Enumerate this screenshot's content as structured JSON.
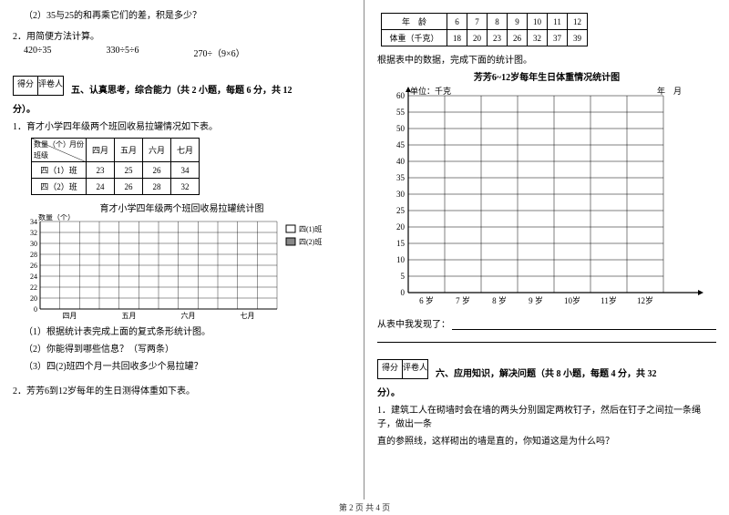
{
  "left": {
    "q1_2": "（2）35与25的和再乘它们的差，积是多少？",
    "q2": "2．用简便方法计算。",
    "calc": [
      "420÷35",
      "330÷5÷6",
      "270÷（9×6）"
    ],
    "scoreLabels": [
      "得分",
      "评卷人"
    ],
    "section5": "五、认真思考，综合能力（共 2 小题，每题 6 分，共 12",
    "fen": "分）。",
    "p1": "1．育才小学四年级两个班回收易拉罐情况如下表。",
    "tbl1": {
      "head_label": "数量（个）",
      "head_sub": "月份",
      "row0": "班级",
      "cols": [
        "四月",
        "五月",
        "六月",
        "七月"
      ],
      "rows": [
        {
          "label": "四（1）班",
          "vals": [
            "23",
            "25",
            "26",
            "34"
          ]
        },
        {
          "label": "四（2）班",
          "vals": [
            "24",
            "26",
            "28",
            "32"
          ]
        }
      ]
    },
    "chart1": {
      "title": "育才小学四年级两个班回收易拉罐统计图",
      "ylab": "数量（个）",
      "yticks": [
        "34",
        "32",
        "30",
        "28",
        "26",
        "24",
        "22",
        "20",
        "0"
      ],
      "xticks": [
        "四月",
        "五月",
        "六月",
        "七月"
      ],
      "legend": [
        "四(1)班",
        "四(2)班"
      ]
    },
    "sub1": "（1）根据统计表完成上面的复式条形统计图。",
    "sub2": "（2）你能得到哪些信息？（写两条）",
    "sub3": "（3）四(2)班四个月一共回收多少个易拉罐？",
    "p2": "2．芳芳6到12岁每年的生日测得体重如下表。"
  },
  "right": {
    "tbl2": {
      "row1_label": "年　龄",
      "row1": [
        "6",
        "7",
        "8",
        "9",
        "10",
        "11",
        "12"
      ],
      "row2_label": "体重（千克）",
      "row2": [
        "18",
        "20",
        "23",
        "26",
        "32",
        "37",
        "39"
      ]
    },
    "p_after_tbl": "根据表中的数据，完成下面的统计图。",
    "chart2": {
      "title": "芳芳6~12岁每年生日体重情况统计图",
      "unit_l": "单位：千克",
      "unit_r": "年　月",
      "yticks": [
        "60",
        "55",
        "50",
        "45",
        "40",
        "35",
        "30",
        "25",
        "20",
        "15",
        "10",
        "5",
        "0"
      ],
      "xticks": [
        "6 岁",
        "7 岁",
        "8 岁",
        "9 岁",
        "10岁",
        "11岁",
        "12岁"
      ]
    },
    "found": "从表中我发现了：",
    "scoreLabels": [
      "得分",
      "评卷人"
    ],
    "section6": "六、应用知识，解决问题（共 8 小题，每题 4 分，共 32",
    "fen": "分）。",
    "p1a": "1．建筑工人在砌墙时会在墙的两头分别固定两枚钉子，然后在钉子之间拉一条绳子，做出一条",
    "p1b": "直的参照线，这样砌出的墙是直的，你知道这是为什么吗？"
  },
  "footer": "第 2 页 共 4 页"
}
